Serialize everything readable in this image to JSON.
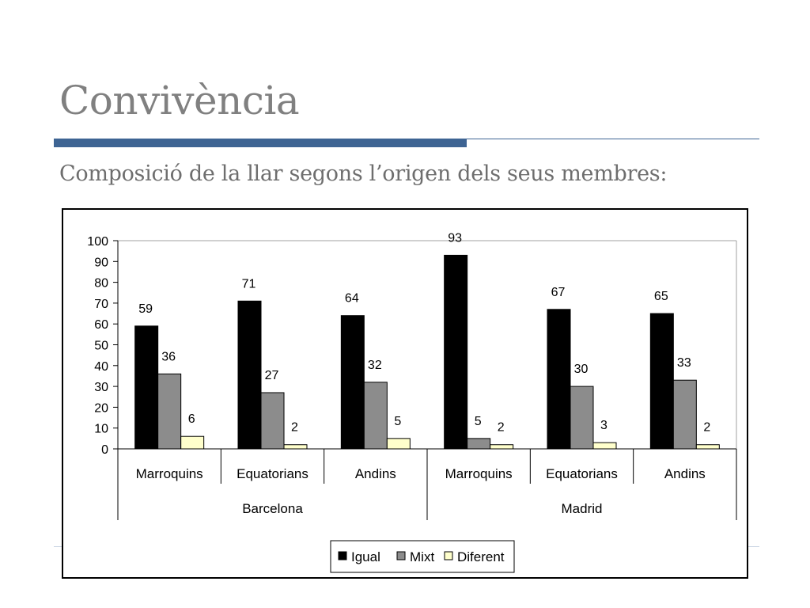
{
  "slide": {
    "title": "Convivència",
    "subtitle": "Composició de la llar segons l’origen dels seus membres:"
  },
  "colors": {
    "accent_bar": "#3e6493",
    "series": [
      "#000000",
      "#8c8c8c",
      "#ffffcc"
    ]
  },
  "chart_data": {
    "type": "bar",
    "groups": [
      {
        "name": "Barcelona",
        "categories": [
          "Marroquins",
          "Equatorians",
          "Andins"
        ]
      },
      {
        "name": "Madrid",
        "categories": [
          "Marroquins",
          "Equatorians",
          "Andins"
        ]
      }
    ],
    "categories": [
      "Marroquins",
      "Equatorians",
      "Andins",
      "Marroquins",
      "Equatorians",
      "Andins"
    ],
    "series": [
      {
        "name": "Igual",
        "values": [
          59,
          71,
          64,
          93,
          67,
          65
        ]
      },
      {
        "name": "Mixt",
        "values": [
          36,
          27,
          32,
          5,
          30,
          33
        ]
      },
      {
        "name": "Diferent",
        "values": [
          6,
          2,
          5,
          2,
          3,
          2
        ]
      }
    ],
    "yticks": [
      0,
      10,
      20,
      30,
      40,
      50,
      60,
      70,
      80,
      90,
      100
    ],
    "ylim": [
      0,
      100
    ],
    "grid": false,
    "data_labels": true,
    "legend": "bottom"
  }
}
